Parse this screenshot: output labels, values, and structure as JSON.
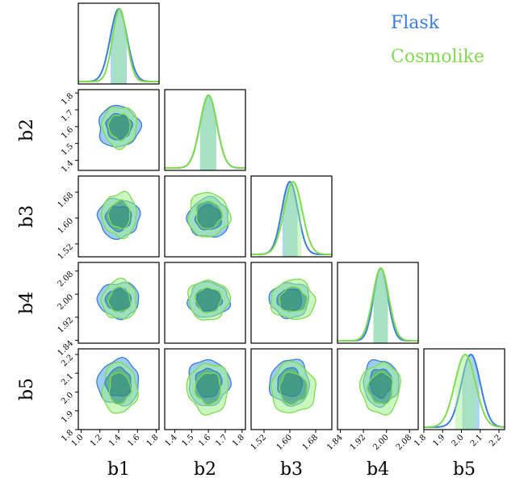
{
  "legend": {
    "flask_label": "Flask",
    "cosmolike_label": "Cosmolike"
  },
  "colors": {
    "flask": "#3b7dde",
    "cosmolike": "#7fdc4f",
    "flask_fill": "#4aa3e8",
    "cosmolike_fill": "#9ef08a",
    "overlap": "#2f8a7a",
    "axis": "#000000"
  },
  "chart_data": {
    "type": "corner",
    "parameters": [
      "b1",
      "b2",
      "b3",
      "b4",
      "b5"
    ],
    "ticks": {
      "b1": [
        "1.0",
        "1.2",
        "1.4",
        "1.6",
        "1.8"
      ],
      "b2": [
        "1.4",
        "1.5",
        "1.6",
        "1.7",
        "1.8"
      ],
      "b3": [
        "1.52",
        "1.60",
        "1.68"
      ],
      "b4": [
        "1.84",
        "1.92",
        "2.00",
        "2.08"
      ],
      "b5": [
        "1.8",
        "1.9",
        "2.0",
        "2.1",
        "2.2"
      ]
    },
    "ranges": {
      "b1": [
        0.97,
        1.83
      ],
      "b2": [
        1.34,
        1.82
      ],
      "b3": [
        1.48,
        1.73
      ],
      "b4": [
        1.83,
        2.11
      ],
      "b5": [
        1.8,
        2.23
      ]
    },
    "series": [
      {
        "name": "Flask",
        "mean": {
          "b1": 1.4,
          "b2": 1.6,
          "b3": 1.6,
          "b4": 1.98,
          "b5": 2.05
        },
        "sigma": {
          "b1": 0.09,
          "b2": 0.05,
          "b3": 0.025,
          "b4": 0.025,
          "b5": 0.05
        }
      },
      {
        "name": "Cosmolike",
        "mean": {
          "b1": 1.41,
          "b2": 1.6,
          "b3": 1.61,
          "b4": 1.98,
          "b5": 2.02
        },
        "sigma": {
          "b1": 0.075,
          "b2": 0.05,
          "b3": 0.028,
          "b4": 0.028,
          "b5": 0.055
        }
      }
    ]
  }
}
